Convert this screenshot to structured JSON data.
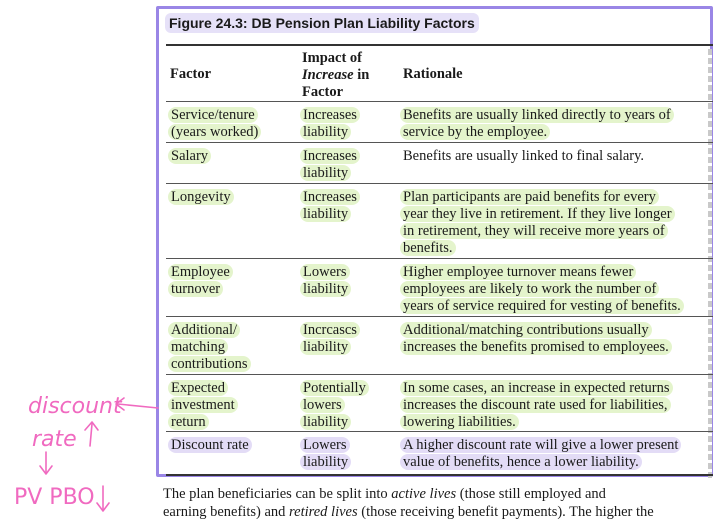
{
  "figure": {
    "title": "Figure 24.3:  DB Pension Plan Liability Factors"
  },
  "table": {
    "headers": {
      "factor": "Factor",
      "impact_line1": "Impact of",
      "impact_italic": "Increase",
      "impact_in": " in",
      "impact_line3": "Factor",
      "rationale": "Rationale"
    },
    "rows": [
      {
        "factor": [
          "Service/tenure",
          "(years worked)"
        ],
        "impact": [
          "Increases",
          "liability"
        ],
        "rationale": [
          "Benefits are usually linked directly to years of",
          "service by the employee."
        ]
      },
      {
        "factor": [
          "Salary"
        ],
        "impact": [
          "Increases",
          "liability"
        ],
        "rationale": [
          "Benefits are usually linked to final salary."
        ]
      },
      {
        "factor": [
          "Longevity"
        ],
        "impact": [
          "Increases",
          "liability"
        ],
        "rationale": [
          "Plan participants are paid benefits for every",
          "year they live in retirement. If they live longer",
          "in retirement, they will receive more years of",
          "benefits."
        ]
      },
      {
        "factor": [
          "Employee",
          "turnover"
        ],
        "impact": [
          "Lowers",
          "liability"
        ],
        "rationale": [
          "Higher employee turnover means fewer",
          "employees are likely to work the number of",
          "years of service required for vesting of benefits."
        ]
      },
      {
        "factor": [
          "Additional/",
          "matching",
          "contributions"
        ],
        "impact": [
          "Incrcascs",
          "liability"
        ],
        "rationale": [
          "Additional/matching contributions usually",
          "increases the benefits promised to employees."
        ]
      },
      {
        "factor": [
          "Expected",
          "investment",
          "return"
        ],
        "impact": [
          "Potentially",
          "lowers",
          "liability"
        ],
        "rationale": [
          "In some cases, an increase in expected returns",
          "increases the discount rate used for liabilities,",
          "lowering liabilities."
        ]
      },
      {
        "factor": [
          "Discount rate"
        ],
        "impact": [
          "Lowers",
          "liability"
        ],
        "rationale": [
          "A higher discount rate will give a lower present",
          "value of benefits, hence a lower liability."
        ]
      }
    ]
  },
  "body": {
    "line1_a": "The plan beneficiaries can be split into ",
    "line1_b": "active lives",
    "line1_c": " (those still employed and",
    "line2_a": "earning benefits) and ",
    "line2_b": "retired lives",
    "line2_c": " (those receiving benefit payments). The higher the"
  },
  "handwriting": {
    "word1": "discount",
    "word2": "rate",
    "word3": "PV PBO",
    "ink_color": "#f06ac0"
  },
  "colors": {
    "frame": "#9a86e6",
    "highlight_green": "#e4f4cc",
    "highlight_purple": "#e3dcf6"
  }
}
